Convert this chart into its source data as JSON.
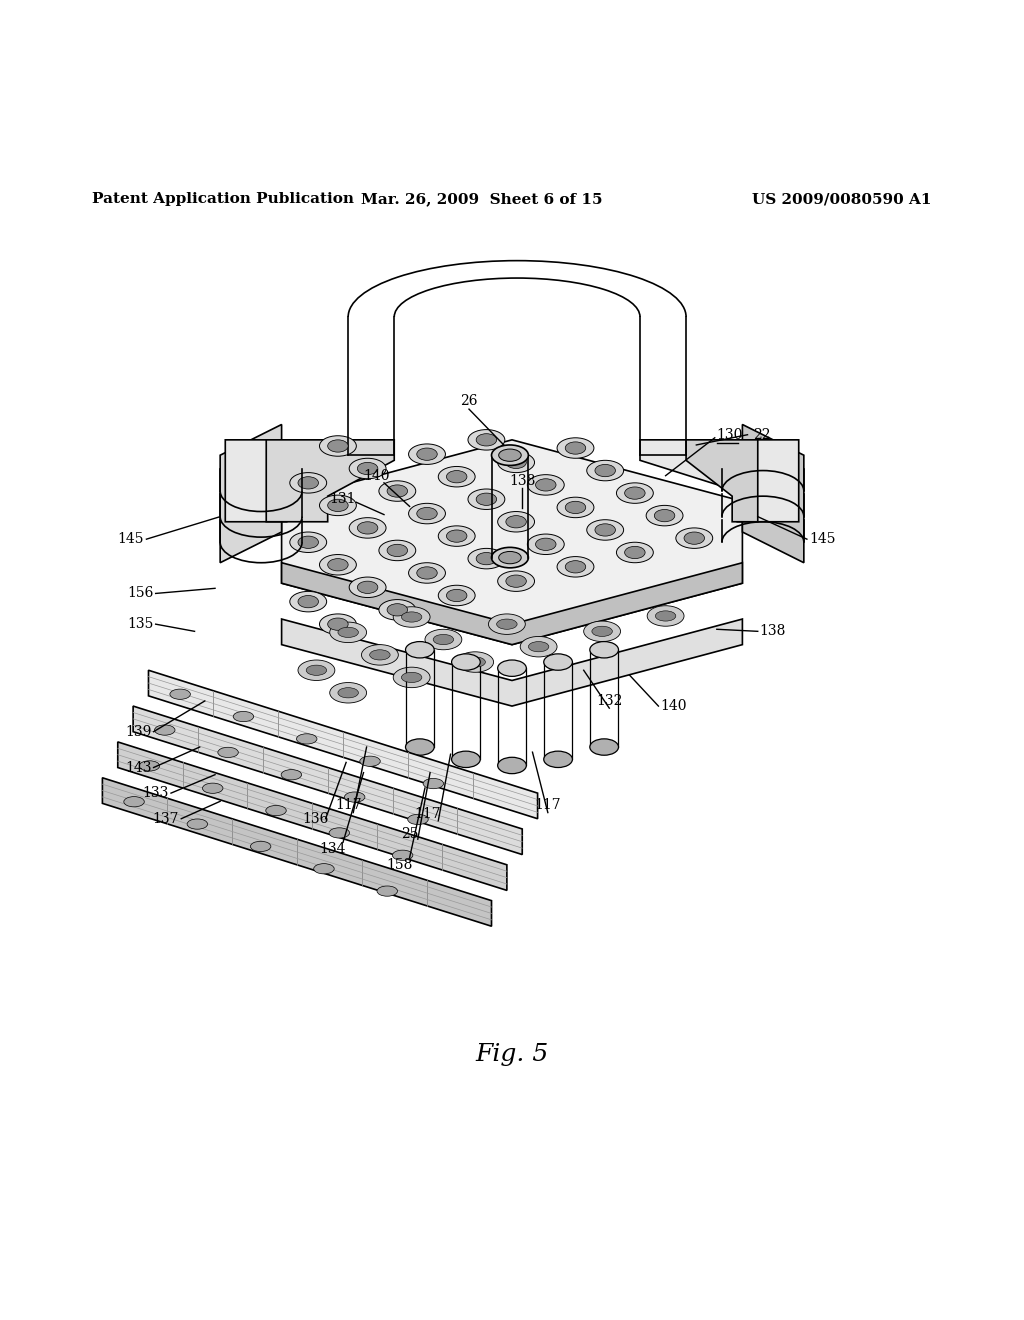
{
  "background_color": "#ffffff",
  "header_left": "Patent Application Publication",
  "header_center": "Mar. 26, 2009  Sheet 6 of 15",
  "header_right": "US 2009/0080590 A1",
  "figure_label": "Fig. 5",
  "line_color": "#000000",
  "text_color": "#000000",
  "header_fontsize": 11,
  "label_fontsize": 10,
  "fig_label_fontsize": 18
}
